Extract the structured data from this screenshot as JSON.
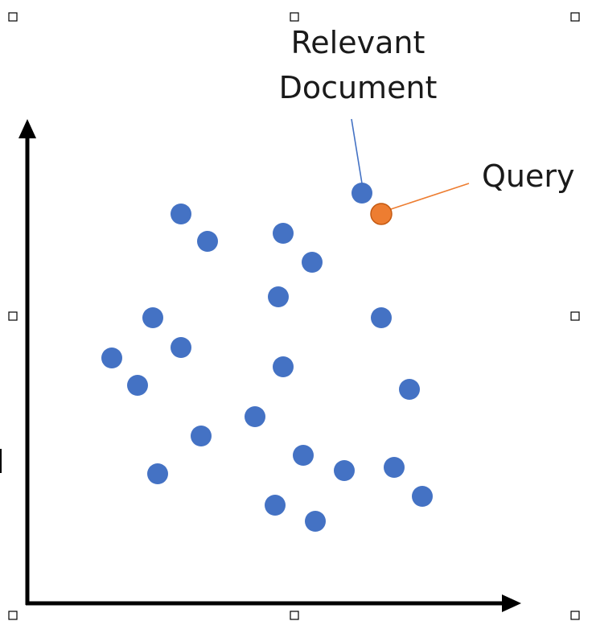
{
  "labels": {
    "relevant_document_line1": "Relevant",
    "relevant_document_line2": "Document",
    "query": "Query"
  },
  "colors": {
    "document_point": "#4472C4",
    "query_point": "#ED7D31",
    "query_leader_line": "#ED7D31",
    "document_leader_line": "#4472C4",
    "axis": "#000000"
  },
  "icons": {
    "selection_handle": "selection-handle-icon"
  }
}
